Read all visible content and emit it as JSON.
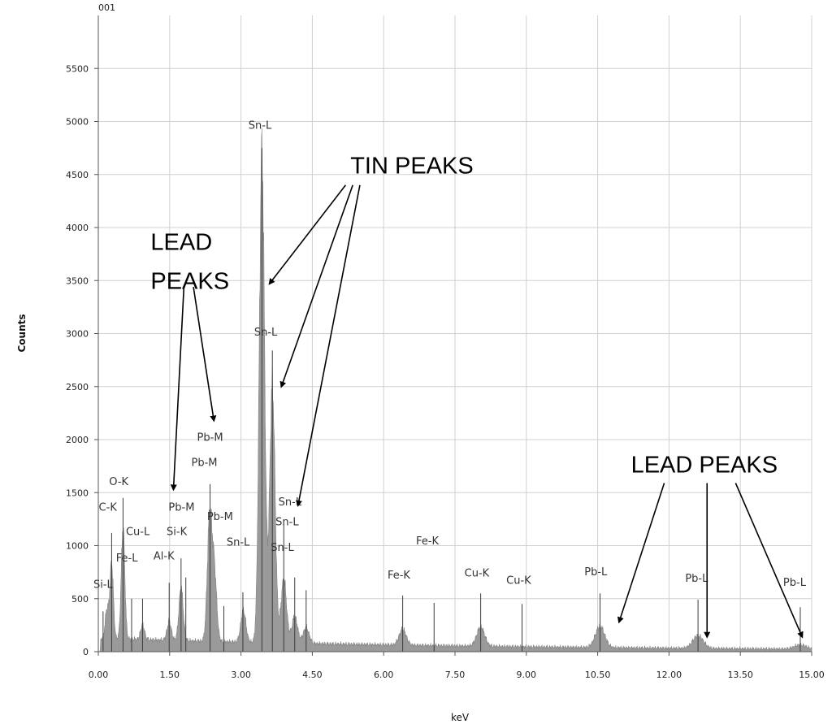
{
  "chart_data": {
    "type": "area",
    "title": "001",
    "xlabel": "keV",
    "ylabel": "Counts",
    "xlim": [
      0,
      15
    ],
    "ylim": [
      0,
      6000
    ],
    "x_ticks": [
      "0.00",
      "1.50",
      "3.00",
      "4.50",
      "6.00",
      "7.50",
      "9.00",
      "10.50",
      "12.00",
      "13.50",
      "15.00"
    ],
    "y_ticks": [
      "0",
      "500",
      "1000",
      "1500",
      "2000",
      "2500",
      "3000",
      "3500",
      "4000",
      "4500",
      "5000",
      "5500"
    ],
    "grid": true,
    "fill_color": "#9a9a9a",
    "background": 120,
    "peaks": [
      {
        "kev": 0.18,
        "counts": 280
      },
      {
        "kev": 0.28,
        "counts": 720
      },
      {
        "kev": 0.52,
        "counts": 1050
      },
      {
        "kev": 0.93,
        "counts": 140
      },
      {
        "kev": 1.49,
        "counts": 180
      },
      {
        "kev": 1.74,
        "counts": 500
      },
      {
        "kev": 2.34,
        "counts": 1150
      },
      {
        "kev": 2.44,
        "counts": 650
      },
      {
        "kev": 3.05,
        "counts": 300
      },
      {
        "kev": 3.44,
        "counts": 4650
      },
      {
        "kev": 3.66,
        "counts": 2440
      },
      {
        "kev": 3.9,
        "counts": 600
      },
      {
        "kev": 4.13,
        "counts": 250
      },
      {
        "kev": 4.37,
        "counts": 150
      },
      {
        "kev": 6.4,
        "counts": 150
      },
      {
        "kev": 8.04,
        "counts": 180
      },
      {
        "kev": 10.55,
        "counts": 200
      },
      {
        "kev": 12.61,
        "counts": 120
      },
      {
        "kev": 14.76,
        "counts": 40
      }
    ],
    "markers": [
      {
        "label": "Si-L",
        "kev": 0.1,
        "height": 380
      },
      {
        "label": "C-K",
        "kev": 0.28,
        "height": 1120
      },
      {
        "label": "O-K",
        "kev": 0.52,
        "height": 1450
      },
      {
        "label": "Fe-L",
        "kev": 0.7,
        "height": 500
      },
      {
        "label": "Cu-L",
        "kev": 0.93,
        "height": 500
      },
      {
        "label": "Al-K",
        "kev": 1.49,
        "height": 650
      },
      {
        "label": "Si-K",
        "kev": 1.74,
        "height": 880
      },
      {
        "label": "Pb-M",
        "kev": 1.84,
        "height": 700
      },
      {
        "label": "Pb-M",
        "kev": 2.35,
        "height": 1580
      },
      {
        "label": "Pb-M",
        "kev": 2.64,
        "height": 430
      },
      {
        "label": "Sn-L",
        "kev": 3.04,
        "height": 560
      },
      {
        "label": "Sn-L",
        "kev": 3.44,
        "height": 4750
      },
      {
        "label": "Sn-L",
        "kev": 3.66,
        "height": 2840
      },
      {
        "label": "Sn-L",
        "kev": 3.9,
        "height": 1200
      },
      {
        "label": "Sn-L",
        "kev": 4.13,
        "height": 700
      },
      {
        "label": "Sn-L",
        "kev": 4.37,
        "height": 580
      },
      {
        "label": "Fe-K",
        "kev": 6.4,
        "height": 530
      },
      {
        "label": "Fe-K",
        "kev": 7.06,
        "height": 460
      },
      {
        "label": "Cu-K",
        "kev": 8.04,
        "height": 550
      },
      {
        "label": "Cu-K",
        "kev": 8.91,
        "height": 450
      },
      {
        "label": "Pb-L",
        "kev": 10.55,
        "height": 550
      },
      {
        "label": "Pb-L",
        "kev": 12.61,
        "height": 490
      },
      {
        "label": "Pb-L",
        "kev": 14.76,
        "height": 420
      }
    ],
    "peak_labels": [
      {
        "label": "Sn-L",
        "kev": 3.4,
        "counts": 4930
      },
      {
        "label": "Sn-L",
        "kev": 3.52,
        "counts": 2980
      },
      {
        "label": "Pb-M",
        "kev": 2.35,
        "counts": 1990
      },
      {
        "label": "Pb-M",
        "kev": 2.23,
        "counts": 1750
      },
      {
        "label": "O-K",
        "kev": 0.43,
        "counts": 1570
      },
      {
        "label": "Pb-M",
        "kev": 1.75,
        "counts": 1330
      },
      {
        "label": "C-K",
        "kev": 0.2,
        "counts": 1330
      },
      {
        "label": "Cu-L",
        "kev": 0.83,
        "counts": 1100
      },
      {
        "label": "Si-K",
        "kev": 1.65,
        "counts": 1100
      },
      {
        "label": "Pb-M",
        "kev": 2.56,
        "counts": 1240
      },
      {
        "label": "Sn-L",
        "kev": 4.03,
        "counts": 1380
      },
      {
        "label": "Sn-L",
        "kev": 3.97,
        "counts": 1190
      },
      {
        "label": "Sn-L",
        "kev": 2.94,
        "counts": 1000
      },
      {
        "label": "Sn-L",
        "kev": 3.87,
        "counts": 950
      },
      {
        "label": "Al-K",
        "kev": 1.38,
        "counts": 870
      },
      {
        "label": "Fe-L",
        "kev": 0.6,
        "counts": 850
      },
      {
        "label": "Si-L",
        "kev": 0.1,
        "counts": 600
      },
      {
        "label": "Fe-K",
        "kev": 6.92,
        "counts": 1010
      },
      {
        "label": "Fe-K",
        "kev": 6.32,
        "counts": 690
      },
      {
        "label": "Cu-K",
        "kev": 7.96,
        "counts": 710
      },
      {
        "label": "Cu-K",
        "kev": 8.84,
        "counts": 640
      },
      {
        "label": "Pb-L",
        "kev": 10.46,
        "counts": 720
      },
      {
        "label": "Pb-L",
        "kev": 12.58,
        "counts": 660
      },
      {
        "label": "Pb-L",
        "kev": 14.64,
        "counts": 620
      }
    ],
    "annotations": [
      {
        "lines": [
          "TIN PEAKS"
        ],
        "kev": 5.3,
        "counts": 4510,
        "arrows": [
          {
            "from": [
              5.2,
              4400
            ],
            "to": [
              3.6,
              3470
            ]
          },
          {
            "from": [
              5.35,
              4400
            ],
            "to": [
              3.85,
              2500
            ]
          },
          {
            "from": [
              5.5,
              4400
            ],
            "to": [
              4.2,
              1380
            ]
          }
        ]
      },
      {
        "lines": [
          "LEAD",
          "PEAKS"
        ],
        "kev": 1.1,
        "counts": 3790,
        "line_step": 370,
        "arrows": [
          {
            "from": [
              1.8,
              3440
            ],
            "to": [
              1.58,
              1530
            ]
          },
          {
            "from": [
              2.0,
              3440
            ],
            "to": [
              2.43,
              2180
            ]
          }
        ]
      },
      {
        "lines": [
          "LEAD PEAKS"
        ],
        "kev": 11.2,
        "counts": 1690,
        "arrows": [
          {
            "from": [
              11.9,
              1590
            ],
            "to": [
              10.95,
              280
            ]
          },
          {
            "from": [
              12.8,
              1590
            ],
            "to": [
              12.8,
              140
            ]
          },
          {
            "from": [
              13.4,
              1590
            ],
            "to": [
              14.8,
              140
            ]
          }
        ]
      }
    ]
  }
}
